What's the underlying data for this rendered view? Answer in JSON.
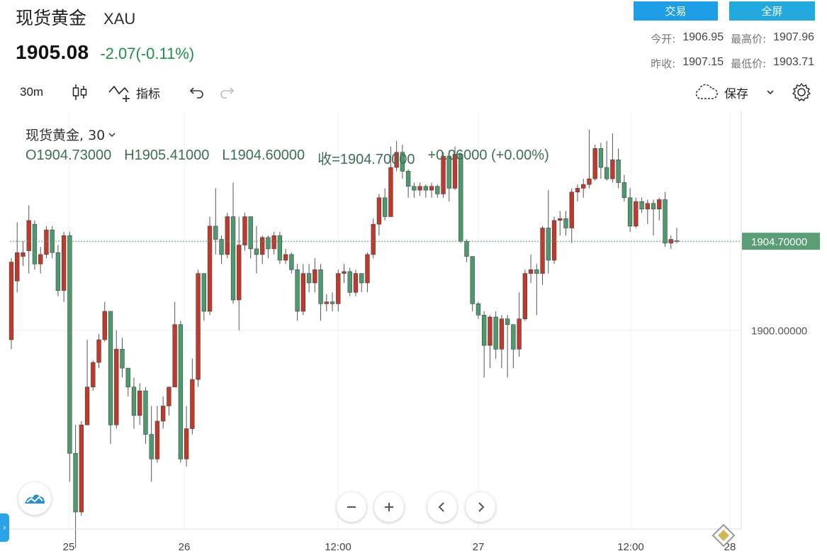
{
  "header": {
    "title": "现货黄金",
    "symbol": "XAU",
    "price": "1905.08",
    "change": "-2.07(-0.11%)",
    "trade_label": "交易",
    "fullscreen_label": "全屏",
    "stats": {
      "open_label": "今开:",
      "open_value": "1906.95",
      "high_label": "最高价:",
      "high_value": "1907.96",
      "prev_close_label": "昨收:",
      "prev_close_value": "1907.15",
      "low_label": "最低价:",
      "low_value": "1903.71"
    }
  },
  "toolbar": {
    "interval": "30m",
    "indicators_label": "指标",
    "save_label": "保存"
  },
  "legend": {
    "name": "现货黄金, 30",
    "open": "O1904.73000",
    "high": "H1905.41000",
    "low": "L1904.60000",
    "close": "收=1904.70000",
    "change": "+0.06000 (+0.00%)"
  },
  "colors": {
    "up": "#c0392b",
    "down": "#4e9a6f",
    "accent": "#1e9ee6"
  },
  "chart_data": {
    "type": "candlestick",
    "x_labels": [
      "25",
      "26",
      "12:00",
      "27",
      "12:00",
      "28"
    ],
    "y_tick_labels": [
      "1900.00000"
    ],
    "last_price_label": "1904.70000",
    "y_ticks": [
      1900
    ],
    "last_price": 1904.7,
    "ylim": [
      1889.5,
      1911.6
    ],
    "candles": [
      [
        1899.5,
        1903.6,
        1899.0,
        1903.8
      ],
      [
        1902.6,
        1904.1,
        1902.0,
        1905.7
      ],
      [
        1903.9,
        1904.1,
        1903.4,
        1904.7
      ],
      [
        1904.2,
        1905.8,
        1903.0,
        1906.6
      ],
      [
        1905.6,
        1903.5,
        1903.2,
        1905.8
      ],
      [
        1903.5,
        1904.0,
        1903.0,
        1904.4
      ],
      [
        1904.0,
        1905.3,
        1903.8,
        1905.5
      ],
      [
        1905.3,
        1904.1,
        1903.8,
        1905.5
      ],
      [
        1904.1,
        1902.1,
        1901.8,
        1904.5
      ],
      [
        1902.1,
        1905.0,
        1901.5,
        1905.2
      ],
      [
        1905.0,
        1893.5,
        1892.0,
        1905.2
      ],
      [
        1893.5,
        1890.4,
        1888.5,
        1895.0
      ],
      [
        1890.4,
        1895.0,
        1890.2,
        1895.2
      ],
      [
        1895.0,
        1897.0,
        1895.0,
        1899.5
      ],
      [
        1897.0,
        1898.3,
        1896.8,
        1898.4
      ],
      [
        1898.3,
        1899.5,
        1898.0,
        1899.8
      ],
      [
        1899.5,
        1901.0,
        1899.4,
        1901.5
      ],
      [
        1901.0,
        1895.0,
        1894.0,
        1901.0
      ],
      [
        1895.0,
        1899.0,
        1894.8,
        1900.0
      ],
      [
        1899.0,
        1898.0,
        1897.5,
        1899.6
      ],
      [
        1898.0,
        1897.0,
        1896.5,
        1898.0
      ],
      [
        1897.0,
        1895.5,
        1894.8,
        1897.5
      ],
      [
        1895.5,
        1896.8,
        1895.0,
        1897.2
      ],
      [
        1896.8,
        1894.5,
        1894.0,
        1897.0
      ],
      [
        1894.5,
        1893.2,
        1892.0,
        1896.0
      ],
      [
        1893.2,
        1895.2,
        1893.0,
        1896.0
      ],
      [
        1895.2,
        1896.0,
        1894.8,
        1896.5
      ],
      [
        1896.0,
        1897.0,
        1895.5,
        1897.0
      ],
      [
        1897.0,
        1900.3,
        1897.0,
        1901.5
      ],
      [
        1900.3,
        1893.2,
        1893.0,
        1900.5
      ],
      [
        1893.2,
        1894.8,
        1892.8,
        1896.0
      ],
      [
        1894.8,
        1897.4,
        1894.5,
        1898.5
      ],
      [
        1897.4,
        1903.0,
        1897.0,
        1903.2
      ],
      [
        1903.0,
        1901.0,
        1900.5,
        1903.0
      ],
      [
        1901.0,
        1905.5,
        1900.8,
        1906.0
      ],
      [
        1905.5,
        1904.8,
        1904.0,
        1907.5
      ],
      [
        1904.8,
        1904.0,
        1903.5,
        1905.0
      ],
      [
        1904.0,
        1906.0,
        1903.8,
        1906.2
      ],
      [
        1906.0,
        1901.6,
        1901.4,
        1907.8
      ],
      [
        1901.6,
        1904.5,
        1900.0,
        1906.0
      ],
      [
        1904.5,
        1906.0,
        1904.2,
        1906.2
      ],
      [
        1906.0,
        1904.3,
        1903.8,
        1906.0
      ],
      [
        1904.3,
        1904.0,
        1903.0,
        1905.5
      ],
      [
        1904.0,
        1904.9,
        1903.5,
        1905.0
      ],
      [
        1904.9,
        1904.3,
        1903.8,
        1905.0
      ],
      [
        1904.3,
        1905.0,
        1904.0,
        1905.2
      ],
      [
        1905.0,
        1903.7,
        1903.5,
        1905.2
      ],
      [
        1903.7,
        1904.0,
        1903.5,
        1904.3
      ],
      [
        1904.0,
        1903.2,
        1903.0,
        1904.1
      ],
      [
        1903.2,
        1901.0,
        1900.5,
        1903.5
      ],
      [
        1901.0,
        1903.0,
        1900.8,
        1903.5
      ],
      [
        1903.0,
        1902.5,
        1902.0,
        1903.5
      ],
      [
        1902.5,
        1903.2,
        1902.0,
        1903.8
      ],
      [
        1903.2,
        1901.4,
        1900.5,
        1903.5
      ],
      [
        1901.4,
        1901.5,
        1901.0,
        1901.9
      ],
      [
        1901.5,
        1901.4,
        1901.0,
        1902.0
      ],
      [
        1901.4,
        1903.0,
        1901.0,
        1903.2
      ],
      [
        1903.0,
        1903.1,
        1902.5,
        1903.5
      ],
      [
        1903.1,
        1902.0,
        1901.8,
        1903.3
      ],
      [
        1902.0,
        1903.0,
        1901.8,
        1903.2
      ],
      [
        1903.0,
        1902.5,
        1902.0,
        1903.0
      ],
      [
        1902.5,
        1904.0,
        1902.0,
        1904.1
      ],
      [
        1904.0,
        1905.6,
        1903.8,
        1905.9
      ],
      [
        1905.6,
        1907.0,
        1905.0,
        1907.2
      ],
      [
        1907.0,
        1906.0,
        1905.8,
        1907.5
      ],
      [
        1906.0,
        1908.6,
        1906.0,
        1909.7
      ],
      [
        1908.6,
        1909.4,
        1908.4,
        1910.0
      ],
      [
        1909.4,
        1908.4,
        1908.0,
        1909.8
      ],
      [
        1908.4,
        1907.6,
        1907.0,
        1908.5
      ],
      [
        1907.6,
        1907.4,
        1907.0,
        1907.8
      ],
      [
        1907.4,
        1907.6,
        1907.1,
        1907.8
      ],
      [
        1907.6,
        1907.4,
        1907.0,
        1907.7
      ],
      [
        1907.4,
        1907.6,
        1907.0,
        1907.8
      ],
      [
        1907.6,
        1907.2,
        1907.0,
        1907.7
      ],
      [
        1907.2,
        1909.2,
        1907.0,
        1909.4
      ],
      [
        1909.2,
        1907.5,
        1906.8,
        1909.5
      ],
      [
        1907.5,
        1909.3,
        1907.4,
        1909.7
      ],
      [
        1909.3,
        1904.7,
        1904.6,
        1909.3
      ],
      [
        1904.7,
        1903.9,
        1903.6,
        1904.8
      ],
      [
        1903.9,
        1901.4,
        1901.0,
        1903.9
      ],
      [
        1901.4,
        1900.8,
        1900.6,
        1901.5
      ],
      [
        1900.8,
        1899.2,
        1897.5,
        1901.0
      ],
      [
        1899.2,
        1900.7,
        1898.0,
        1900.8
      ],
      [
        1900.7,
        1899.0,
        1898.5,
        1901.0
      ],
      [
        1899.0,
        1900.6,
        1898.0,
        1900.8
      ],
      [
        1900.6,
        1900.3,
        1897.5,
        1900.8
      ],
      [
        1900.3,
        1899.0,
        1898.0,
        1900.3
      ],
      [
        1899.0,
        1900.6,
        1898.6,
        1902.0
      ],
      [
        1900.6,
        1903.0,
        1900.5,
        1903.2
      ],
      [
        1903.0,
        1903.2,
        1902.5,
        1904.0
      ],
      [
        1903.2,
        1903.0,
        1900.8,
        1903.5
      ],
      [
        1903.0,
        1905.4,
        1902.4,
        1905.5
      ],
      [
        1905.4,
        1903.7,
        1903.0,
        1907.4
      ],
      [
        1903.7,
        1905.8,
        1903.5,
        1906.0
      ],
      [
        1905.8,
        1905.9,
        1905.0,
        1906.3
      ],
      [
        1905.9,
        1905.4,
        1905.0,
        1906.3
      ],
      [
        1905.4,
        1907.3,
        1904.6,
        1907.5
      ],
      [
        1907.3,
        1907.5,
        1906.8,
        1907.7
      ],
      [
        1907.5,
        1907.7,
        1907.0,
        1908.0
      ],
      [
        1907.7,
        1908.0,
        1907.5,
        1910.6
      ],
      [
        1908.0,
        1909.6,
        1907.9,
        1909.8
      ],
      [
        1909.6,
        1908.6,
        1908.0,
        1909.9
      ],
      [
        1908.6,
        1908.0,
        1907.9,
        1910.0
      ],
      [
        1908.0,
        1909.0,
        1907.8,
        1910.4
      ],
      [
        1909.0,
        1907.8,
        1907.5,
        1909.6
      ],
      [
        1907.8,
        1907.0,
        1906.8,
        1908.2
      ],
      [
        1907.0,
        1905.5,
        1905.2,
        1907.5
      ],
      [
        1905.5,
        1906.8,
        1905.4,
        1907.0
      ],
      [
        1906.8,
        1906.4,
        1906.2,
        1907.0
      ],
      [
        1906.4,
        1906.7,
        1905.6,
        1906.9
      ],
      [
        1906.7,
        1906.4,
        1905.0,
        1906.9
      ],
      [
        1906.4,
        1906.9,
        1905.8,
        1907.0
      ],
      [
        1906.9,
        1904.6,
        1904.4,
        1907.3
      ],
      [
        1904.6,
        1904.8,
        1904.3,
        1905.0
      ],
      [
        1904.73,
        1904.7,
        1904.6,
        1905.41
      ]
    ]
  }
}
